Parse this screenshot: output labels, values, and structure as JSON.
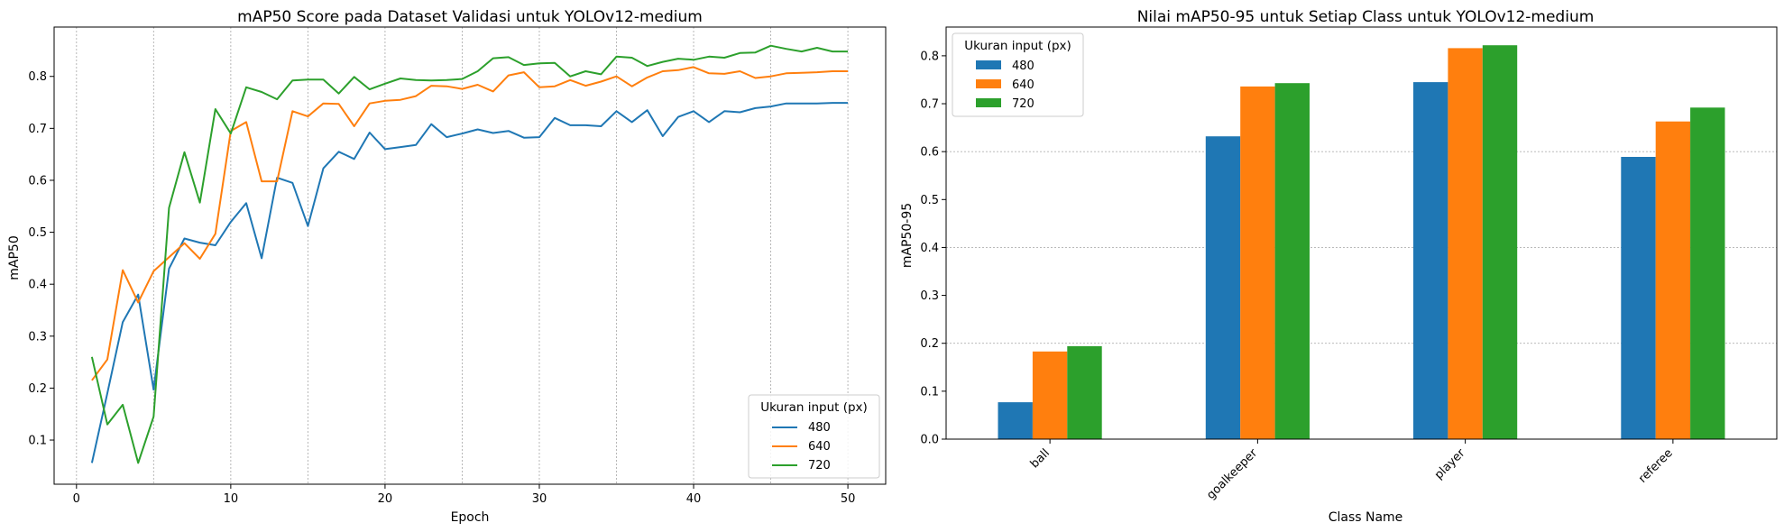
{
  "colors": {
    "480": "#1f77b4",
    "640": "#ff7f0e",
    "720": "#2ca02c",
    "grid": "#b0b0b0"
  },
  "chart_data": [
    {
      "type": "line",
      "title": "mAP50 Score pada Dataset Validasi untuk YOLOv12-medium",
      "xlabel": "Epoch",
      "ylabel": "mAP50",
      "xlim": [
        -1.45,
        52.45
      ],
      "ylim": [
        0.015,
        0.895
      ],
      "xticks": [
        0,
        10,
        20,
        30,
        40,
        50
      ],
      "yticks": [
        0.1,
        0.2,
        0.3,
        0.4,
        0.5,
        0.6,
        0.7,
        0.8
      ],
      "ytick_labels": [
        "0.1",
        "0.2",
        "0.3",
        "0.4",
        "0.5",
        "0.6",
        "0.7",
        "0.8"
      ],
      "vgrid": [
        0,
        5,
        10,
        15,
        20,
        25,
        30,
        35,
        40,
        45,
        50
      ],
      "grid": "vertical dotted",
      "legend_title": "Ukuran input (px)",
      "legend_position": "lower right",
      "x": [
        1,
        2,
        3,
        4,
        5,
        6,
        7,
        8,
        9,
        10,
        11,
        12,
        13,
        14,
        15,
        16,
        17,
        18,
        19,
        20,
        21,
        22,
        23,
        24,
        25,
        26,
        27,
        28,
        29,
        30,
        31,
        32,
        33,
        34,
        35,
        36,
        37,
        38,
        39,
        40,
        41,
        42,
        43,
        44,
        45,
        46,
        47,
        48,
        49,
        50
      ],
      "series": [
        {
          "name": "480",
          "values": [
            0.056,
            0.19,
            0.327,
            0.38,
            0.197,
            0.43,
            0.488,
            0.48,
            0.475,
            0.52,
            0.556,
            0.45,
            0.605,
            0.595,
            0.512,
            0.623,
            0.655,
            0.641,
            0.692,
            0.66,
            0.664,
            0.668,
            0.708,
            0.683,
            0.69,
            0.698,
            0.691,
            0.695,
            0.682,
            0.683,
            0.72,
            0.706,
            0.706,
            0.704,
            0.733,
            0.712,
            0.735,
            0.685,
            0.722,
            0.733,
            0.712,
            0.733,
            0.731,
            0.739,
            0.742,
            0.748,
            0.748,
            0.748,
            0.749,
            0.749
          ]
        },
        {
          "name": "640",
          "values": [
            0.215,
            0.255,
            0.427,
            0.365,
            0.425,
            0.452,
            0.479,
            0.449,
            0.497,
            0.695,
            0.712,
            0.598,
            0.598,
            0.733,
            0.723,
            0.748,
            0.747,
            0.704,
            0.748,
            0.753,
            0.755,
            0.762,
            0.782,
            0.781,
            0.776,
            0.784,
            0.771,
            0.802,
            0.808,
            0.779,
            0.781,
            0.793,
            0.782,
            0.79,
            0.8,
            0.781,
            0.798,
            0.81,
            0.812,
            0.818,
            0.806,
            0.805,
            0.81,
            0.797,
            0.8,
            0.806,
            0.807,
            0.808,
            0.81,
            0.81
          ]
        },
        {
          "name": "720",
          "values": [
            0.26,
            0.13,
            0.168,
            0.056,
            0.145,
            0.547,
            0.654,
            0.557,
            0.737,
            0.69,
            0.779,
            0.77,
            0.756,
            0.792,
            0.794,
            0.794,
            0.767,
            0.799,
            0.775,
            0.786,
            0.796,
            0.793,
            0.792,
            0.793,
            0.795,
            0.81,
            0.835,
            0.837,
            0.822,
            0.825,
            0.826,
            0.8,
            0.81,
            0.804,
            0.838,
            0.836,
            0.82,
            0.828,
            0.834,
            0.832,
            0.838,
            0.836,
            0.845,
            0.846,
            0.859,
            0.853,
            0.848,
            0.855,
            0.848,
            0.848
          ]
        }
      ]
    },
    {
      "type": "bar",
      "title": "Nilai mAP50-95 untuk Setiap Class untuk YOLOv12-medium",
      "xlabel": "Class Name",
      "ylabel": "mAP50-95",
      "ylim": [
        0,
        0.86
      ],
      "yticks": [
        0.0,
        0.1,
        0.2,
        0.3,
        0.4,
        0.5,
        0.6,
        0.7,
        0.8
      ],
      "ytick_labels": [
        "0.0",
        "0.1",
        "0.2",
        "0.3",
        "0.4",
        "0.5",
        "0.6",
        "0.7",
        "0.8"
      ],
      "hgrid": [
        0.2,
        0.4,
        0.6
      ],
      "grid": "horizontal dotted",
      "legend_title": "Ukuran input (px)",
      "legend_position": "upper left",
      "categories": [
        "ball",
        "goalkeeper",
        "player",
        "referee"
      ],
      "series": [
        {
          "name": "480",
          "values": [
            0.077,
            0.632,
            0.745,
            0.589
          ]
        },
        {
          "name": "640",
          "values": [
            0.183,
            0.736,
            0.816,
            0.663
          ]
        },
        {
          "name": "720",
          "values": [
            0.194,
            0.743,
            0.822,
            0.692
          ]
        }
      ]
    }
  ]
}
